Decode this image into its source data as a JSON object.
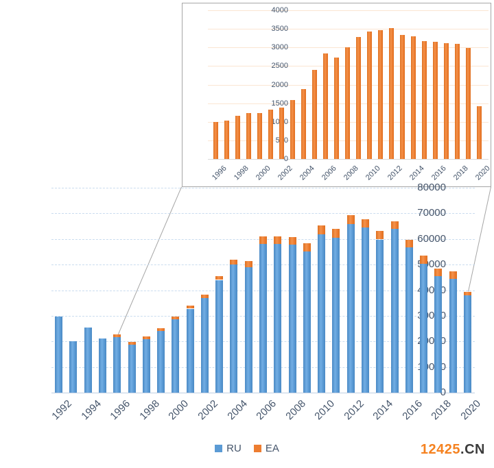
{
  "legend": [
    {
      "label": "RU",
      "color": "#5B9BD5"
    },
    {
      "label": "EA",
      "color": "#ED7D31"
    }
  ],
  "watermark": {
    "number": "12425",
    "suffix": ".CN",
    "number_color": "#F58220",
    "suffix_color": "#3C3C3C"
  },
  "colors": {
    "axis_text": "#44546A",
    "main_grid": "#C9DCEF",
    "main_axis": "#BFCFE3",
    "inset_grid": "#FBE5D2",
    "inset_axis": "#D9D9D9",
    "inset_border": "#A6A6A6",
    "callout_line": "#A6A6A6",
    "ru_bar": "#5B9BD5",
    "ea_bar": "#ED7D31"
  },
  "chart_data": [
    {
      "id": "main",
      "type": "bar",
      "stacked": true,
      "grid": true,
      "legend_position": "bottom",
      "ylim": [
        0,
        80000
      ],
      "y_ticks": [
        0,
        10000,
        20000,
        30000,
        40000,
        50000,
        60000,
        70000,
        80000
      ],
      "categories": [
        1992,
        1993,
        1994,
        1995,
        1996,
        1997,
        1998,
        1999,
        2000,
        2001,
        2002,
        2003,
        2004,
        2005,
        2006,
        2007,
        2008,
        2009,
        2010,
        2011,
        2012,
        2013,
        2014,
        2015,
        2016,
        2017,
        2018,
        2019,
        2020
      ],
      "x_tick_labels": [
        "1992",
        "1994",
        "1996",
        "1998",
        "2000",
        "2002",
        "2004",
        "2006",
        "2008",
        "2010",
        "2012",
        "2014",
        "2016",
        "2018",
        "2020"
      ],
      "series": [
        {
          "name": "RU",
          "color": "#5B9BD5",
          "values": [
            29800,
            20000,
            25300,
            21100,
            21700,
            18770,
            20830,
            23970,
            28570,
            32780,
            36910,
            44010,
            50110,
            48900,
            58160,
            58170,
            57800,
            55110,
            61870,
            60440,
            65780,
            64370,
            59800,
            63830,
            56640,
            50290,
            45400,
            44520,
            37880
          ]
        },
        {
          "name": "EA",
          "color": "#ED7D31",
          "values": [
            0,
            0,
            0,
            0,
            1000,
            1030,
            1170,
            1230,
            1230,
            1320,
            1390,
            1590,
            1890,
            2400,
            2840,
            2730,
            3000,
            3290,
            3430,
            3460,
            3520,
            3330,
            3300,
            3170,
            3160,
            3110,
            3100,
            2980,
            1420
          ]
        }
      ]
    },
    {
      "id": "inset",
      "type": "bar",
      "stacked": false,
      "grid": true,
      "description": "magnified view of EA series 1996-2020",
      "ylim": [
        0,
        4000
      ],
      "y_ticks": [
        0,
        500,
        1000,
        1500,
        2000,
        2500,
        3000,
        3500,
        4000
      ],
      "categories": [
        1996,
        1997,
        1998,
        1999,
        2000,
        2001,
        2002,
        2003,
        2004,
        2005,
        2006,
        2007,
        2008,
        2009,
        2010,
        2011,
        2012,
        2013,
        2014,
        2015,
        2016,
        2017,
        2018,
        2019,
        2020
      ],
      "x_tick_labels": [
        "1996",
        "1998",
        "2000",
        "2002",
        "2004",
        "2006",
        "2008",
        "2010",
        "2012",
        "2014",
        "2016",
        "2018",
        "2020"
      ],
      "series": [
        {
          "name": "EA",
          "color": "#ED7D31",
          "values": [
            1000,
            1030,
            1170,
            1230,
            1230,
            1320,
            1390,
            1590,
            1890,
            2400,
            2840,
            2730,
            3000,
            3290,
            3430,
            3460,
            3520,
            3330,
            3300,
            3170,
            3160,
            3110,
            3100,
            2980,
            1420
          ]
        }
      ]
    }
  ]
}
